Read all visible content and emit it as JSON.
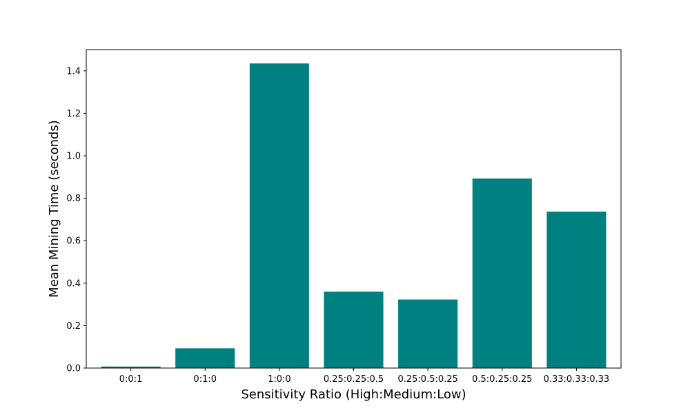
{
  "chart_data": {
    "type": "bar",
    "title": "",
    "xlabel": "Sensitivity Ratio (High:Medium:Low)",
    "ylabel": "Mean Mining Time (seconds)",
    "categories": [
      "0:0:1",
      "0:1:0",
      "1:0:0",
      "0.25:0.25:0.5",
      "0.25:0.5:0.25",
      "0.5:0.25:0.25",
      "0.33:0.33:0.33"
    ],
    "values": [
      0.007,
      0.093,
      1.435,
      0.36,
      0.323,
      0.893,
      0.737
    ],
    "ylim": [
      0,
      1.5
    ],
    "yticks": [
      0.0,
      0.2,
      0.4,
      0.6,
      0.8,
      1.0,
      1.2,
      1.4
    ],
    "ytick_labels": [
      "0.0",
      "0.2",
      "0.4",
      "0.6",
      "0.8",
      "1.0",
      "1.2",
      "1.4"
    ],
    "grid": false,
    "legend": "none",
    "bar_color": "#008080"
  }
}
